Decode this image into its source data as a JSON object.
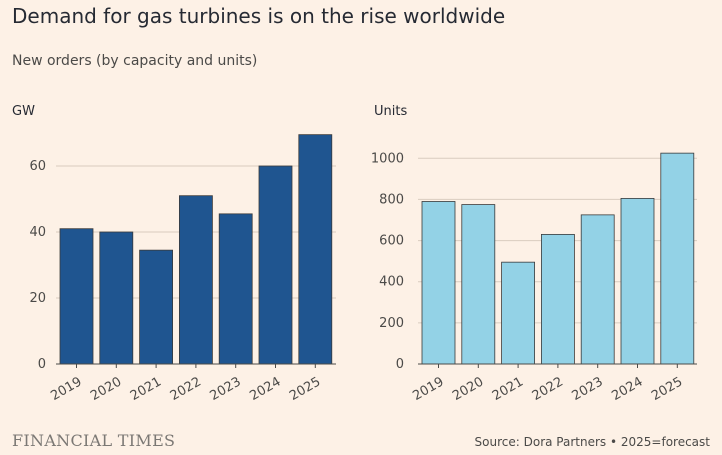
{
  "header": {
    "title": "Demand for gas turbines is on the rise worldwide",
    "subtitle": "New orders (by capacity and units)"
  },
  "footer": {
    "brand": "FINANCIAL TIMES",
    "source": "Source: Dora Partners • 2025=forecast"
  },
  "colors": {
    "left_bar": "#1f5590",
    "right_bar": "#93d2e6",
    "grid": "#d9ccbf",
    "background": "#fdf1e6"
  },
  "chart_data": [
    {
      "type": "bar",
      "ylabel": "GW",
      "categories": [
        "2019",
        "2020",
        "2021",
        "2022",
        "2023",
        "2024",
        "2025"
      ],
      "values": [
        41,
        40,
        34.5,
        51,
        45.5,
        60,
        69.5
      ],
      "ylim": [
        0,
        70
      ],
      "yticks": [
        0,
        20,
        40,
        60
      ],
      "grid": true
    },
    {
      "type": "bar",
      "ylabel": "Units",
      "categories": [
        "2019",
        "2020",
        "2021",
        "2022",
        "2023",
        "2024",
        "2025"
      ],
      "values": [
        790,
        775,
        495,
        630,
        725,
        805,
        1025
      ],
      "ylim": [
        0,
        1050
      ],
      "yticks": [
        0,
        200,
        400,
        600,
        800,
        1000
      ],
      "grid": true
    }
  ]
}
